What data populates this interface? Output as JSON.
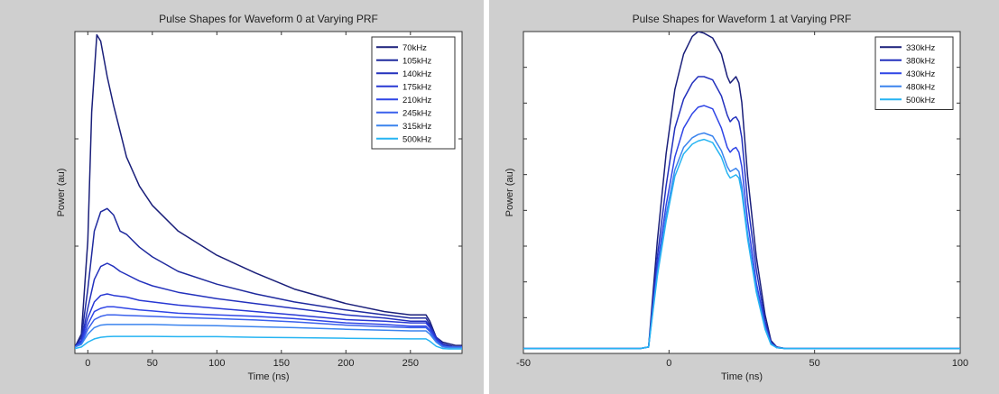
{
  "chart_data": [
    {
      "type": "line",
      "title": "Pulse Shapes for Waveform 0 at Varying PRF",
      "xlabel": "Time (ns)",
      "ylabel": "Power (au)",
      "xlim": [
        -10,
        290
      ],
      "ylim": [
        0,
        1
      ],
      "xticks": [
        0,
        50,
        100,
        150,
        200,
        250
      ],
      "xtick_labels": [
        "0",
        "50",
        "100",
        "150",
        "200",
        "250"
      ],
      "yticks_unlabeled": true,
      "grid": false,
      "legend_position": "top-right",
      "series": [
        {
          "name": "70kHz",
          "color": "#1a1f7a",
          "x": [
            -10,
            -5,
            0,
            3,
            7,
            10,
            15,
            20,
            25,
            30,
            40,
            50,
            70,
            100,
            130,
            160,
            200,
            230,
            250,
            262,
            265,
            270,
            275,
            280,
            285,
            290
          ],
          "y": [
            0.02,
            0.06,
            0.35,
            0.75,
            0.99,
            0.97,
            0.86,
            0.77,
            0.69,
            0.61,
            0.52,
            0.46,
            0.38,
            0.305,
            0.25,
            0.2,
            0.155,
            0.13,
            0.12,
            0.12,
            0.1,
            0.05,
            0.035,
            0.03,
            0.025,
            0.025
          ]
        },
        {
          "name": "105kHz",
          "color": "#1f2a9e",
          "x": [
            -10,
            -5,
            0,
            5,
            10,
            15,
            20,
            25,
            30,
            40,
            50,
            70,
            100,
            130,
            160,
            200,
            230,
            250,
            262,
            265,
            270,
            275,
            280,
            285,
            290
          ],
          "y": [
            0.02,
            0.05,
            0.2,
            0.38,
            0.44,
            0.45,
            0.43,
            0.38,
            0.37,
            0.33,
            0.3,
            0.255,
            0.215,
            0.185,
            0.16,
            0.135,
            0.12,
            0.11,
            0.11,
            0.09,
            0.05,
            0.03,
            0.025,
            0.02,
            0.02
          ]
        },
        {
          "name": "140kHz",
          "color": "#2331bd",
          "x": [
            -10,
            -5,
            0,
            5,
            10,
            15,
            20,
            25,
            30,
            40,
            50,
            70,
            100,
            130,
            160,
            200,
            230,
            250,
            262,
            265,
            270,
            275,
            280,
            285,
            290
          ],
          "y": [
            0.02,
            0.04,
            0.14,
            0.23,
            0.27,
            0.28,
            0.27,
            0.255,
            0.245,
            0.225,
            0.21,
            0.19,
            0.17,
            0.155,
            0.14,
            0.12,
            0.11,
            0.1,
            0.1,
            0.085,
            0.05,
            0.03,
            0.022,
            0.02,
            0.02
          ]
        },
        {
          "name": "175kHz",
          "color": "#2838d4",
          "x": [
            -10,
            -5,
            0,
            5,
            10,
            15,
            20,
            30,
            40,
            50,
            70,
            100,
            130,
            160,
            200,
            230,
            250,
            262,
            265,
            270,
            275,
            280,
            285,
            290
          ],
          "y": [
            0.02,
            0.04,
            0.11,
            0.16,
            0.18,
            0.185,
            0.18,
            0.175,
            0.165,
            0.16,
            0.15,
            0.14,
            0.13,
            0.12,
            0.105,
            0.1,
            0.095,
            0.095,
            0.08,
            0.045,
            0.025,
            0.02,
            0.02,
            0.02
          ]
        },
        {
          "name": "210kHz",
          "color": "#2f45e6",
          "x": [
            -10,
            -5,
            0,
            5,
            10,
            15,
            20,
            30,
            40,
            50,
            70,
            100,
            130,
            160,
            200,
            230,
            250,
            262,
            265,
            270,
            275,
            280,
            285,
            290
          ],
          "y": [
            0.02,
            0.035,
            0.09,
            0.13,
            0.14,
            0.145,
            0.145,
            0.14,
            0.135,
            0.132,
            0.125,
            0.12,
            0.115,
            0.108,
            0.095,
            0.09,
            0.085,
            0.085,
            0.072,
            0.04,
            0.022,
            0.02,
            0.02,
            0.02
          ]
        },
        {
          "name": "245kHz",
          "color": "#3a61ec",
          "x": [
            -10,
            -5,
            0,
            5,
            10,
            15,
            20,
            30,
            50,
            70,
            100,
            130,
            160,
            200,
            230,
            250,
            262,
            265,
            270,
            275,
            280,
            285,
            290
          ],
          "y": [
            0.02,
            0.03,
            0.075,
            0.105,
            0.115,
            0.12,
            0.12,
            0.118,
            0.115,
            0.112,
            0.108,
            0.104,
            0.098,
            0.088,
            0.083,
            0.08,
            0.08,
            0.068,
            0.038,
            0.022,
            0.02,
            0.02,
            0.02
          ]
        },
        {
          "name": "315kHz",
          "color": "#3b84ee",
          "x": [
            -10,
            -5,
            0,
            5,
            10,
            15,
            20,
            30,
            50,
            70,
            100,
            130,
            160,
            200,
            230,
            250,
            262,
            265,
            270,
            275,
            280,
            285,
            290
          ],
          "y": [
            0.02,
            0.028,
            0.06,
            0.08,
            0.088,
            0.09,
            0.09,
            0.09,
            0.09,
            0.088,
            0.086,
            0.083,
            0.08,
            0.075,
            0.072,
            0.07,
            0.07,
            0.06,
            0.035,
            0.02,
            0.018,
            0.018,
            0.018
          ]
        },
        {
          "name": "500kHz",
          "color": "#26b4f2",
          "x": [
            -10,
            -5,
            0,
            5,
            10,
            15,
            20,
            30,
            50,
            70,
            100,
            130,
            160,
            200,
            230,
            250,
            262,
            265,
            270,
            275,
            280,
            285,
            290
          ],
          "y": [
            0.015,
            0.02,
            0.035,
            0.045,
            0.05,
            0.052,
            0.053,
            0.053,
            0.053,
            0.052,
            0.052,
            0.05,
            0.049,
            0.047,
            0.046,
            0.045,
            0.045,
            0.038,
            0.022,
            0.015,
            0.014,
            0.014,
            0.014
          ]
        }
      ]
    },
    {
      "type": "line",
      "title": "Pulse Shapes for Waveform 1 at Varying PRF",
      "xlabel": "Time (ns)",
      "ylabel": "Power (au)",
      "xlim": [
        -50,
        100
      ],
      "ylim": [
        0,
        1
      ],
      "xticks": [
        -50,
        0,
        50,
        100
      ],
      "xtick_labels": [
        "-50",
        "0",
        "50",
        "100"
      ],
      "yticks_unlabeled": true,
      "grid": false,
      "legend_position": "top-right",
      "series": [
        {
          "name": "330kHz",
          "color": "#1a1f7a",
          "x": [
            -50,
            -10,
            -7,
            -4,
            -1,
            2,
            5,
            8,
            10,
            12,
            15,
            18,
            20,
            21,
            22,
            23,
            24,
            25,
            27,
            30,
            33,
            35,
            37,
            40,
            50,
            70,
            100
          ],
          "y": [
            0.015,
            0.015,
            0.02,
            0.35,
            0.62,
            0.82,
            0.93,
            0.985,
            1.0,
            0.995,
            0.98,
            0.93,
            0.86,
            0.84,
            0.85,
            0.86,
            0.84,
            0.78,
            0.55,
            0.3,
            0.12,
            0.04,
            0.02,
            0.015,
            0.015,
            0.015,
            0.015
          ]
        },
        {
          "name": "380kHz",
          "color": "#2331bd",
          "x": [
            -50,
            -10,
            -7,
            -4,
            -1,
            2,
            5,
            8,
            10,
            12,
            15,
            18,
            20,
            21,
            22,
            23,
            24,
            25,
            27,
            30,
            33,
            35,
            37,
            40,
            50,
            70,
            100
          ],
          "y": [
            0.015,
            0.015,
            0.02,
            0.3,
            0.52,
            0.7,
            0.79,
            0.84,
            0.86,
            0.86,
            0.85,
            0.8,
            0.74,
            0.72,
            0.73,
            0.735,
            0.72,
            0.67,
            0.47,
            0.26,
            0.1,
            0.035,
            0.02,
            0.015,
            0.015,
            0.015,
            0.015
          ]
        },
        {
          "name": "430kHz",
          "color": "#2f45e6",
          "x": [
            -50,
            -10,
            -7,
            -4,
            -1,
            2,
            5,
            8,
            10,
            12,
            15,
            18,
            20,
            21,
            22,
            23,
            24,
            25,
            27,
            30,
            33,
            35,
            37,
            40,
            50,
            70,
            100
          ],
          "y": [
            0.015,
            0.015,
            0.02,
            0.27,
            0.46,
            0.61,
            0.7,
            0.745,
            0.765,
            0.77,
            0.76,
            0.7,
            0.64,
            0.625,
            0.635,
            0.64,
            0.625,
            0.58,
            0.41,
            0.22,
            0.09,
            0.03,
            0.018,
            0.015,
            0.015,
            0.015,
            0.015
          ]
        },
        {
          "name": "480kHz",
          "color": "#3b84ee",
          "x": [
            -50,
            -10,
            -7,
            -4,
            -1,
            2,
            5,
            8,
            10,
            12,
            15,
            18,
            20,
            21,
            22,
            23,
            24,
            25,
            27,
            30,
            33,
            35,
            37,
            40,
            50,
            70,
            100
          ],
          "y": [
            0.015,
            0.015,
            0.02,
            0.25,
            0.43,
            0.57,
            0.64,
            0.67,
            0.68,
            0.685,
            0.675,
            0.63,
            0.58,
            0.565,
            0.57,
            0.575,
            0.565,
            0.52,
            0.37,
            0.2,
            0.08,
            0.03,
            0.018,
            0.015,
            0.015,
            0.015,
            0.015
          ]
        },
        {
          "name": "500kHz",
          "color": "#26b4f2",
          "x": [
            -50,
            -10,
            -7,
            -4,
            -1,
            2,
            5,
            8,
            10,
            12,
            15,
            18,
            20,
            21,
            22,
            23,
            24,
            25,
            27,
            30,
            33,
            35,
            37,
            40,
            50,
            70,
            100
          ],
          "y": [
            0.015,
            0.015,
            0.02,
            0.24,
            0.41,
            0.55,
            0.62,
            0.65,
            0.66,
            0.665,
            0.655,
            0.61,
            0.56,
            0.545,
            0.55,
            0.555,
            0.545,
            0.5,
            0.355,
            0.19,
            0.075,
            0.028,
            0.018,
            0.015,
            0.015,
            0.015,
            0.015
          ]
        }
      ]
    }
  ]
}
